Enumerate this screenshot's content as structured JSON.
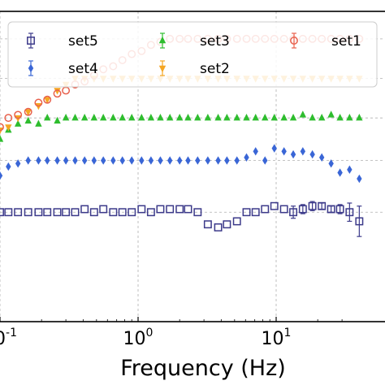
{
  "chart_data": {
    "type": "scatter",
    "title": "",
    "xlabel": "Frequency (Hz)",
    "ylabel": "",
    "x_scale": "log",
    "xlim": [
      0.1,
      100
    ],
    "x_tick_labels": [
      {
        "base": "10",
        "exp": "-1",
        "value": 0.1
      },
      {
        "base": "10",
        "exp": "0",
        "value": 1
      },
      {
        "base": "10",
        "exp": "1",
        "value": 10
      }
    ],
    "grid": true,
    "legend_position": "top",
    "colors": {
      "set1": "#e8604c",
      "set2": "#f5a623",
      "set3": "#2ebd2e",
      "set4": "#3a66d6",
      "set5": "#3c3a8a"
    },
    "series": [
      {
        "name": "set5",
        "marker": "square-open",
        "points": [
          [
            0.1,
            0.36
          ],
          [
            0.115,
            0.36
          ],
          [
            0.135,
            0.36
          ],
          [
            0.16,
            0.36
          ],
          [
            0.19,
            0.36
          ],
          [
            0.22,
            0.36
          ],
          [
            0.26,
            0.36
          ],
          [
            0.3,
            0.36
          ],
          [
            0.35,
            0.36
          ],
          [
            0.41,
            0.37
          ],
          [
            0.48,
            0.36
          ],
          [
            0.56,
            0.37
          ],
          [
            0.66,
            0.36
          ],
          [
            0.77,
            0.36
          ],
          [
            0.9,
            0.36
          ],
          [
            1.06,
            0.37
          ],
          [
            1.24,
            0.36
          ],
          [
            1.45,
            0.37
          ],
          [
            1.7,
            0.37
          ],
          [
            2.0,
            0.37
          ],
          [
            2.3,
            0.37
          ],
          [
            2.7,
            0.36
          ],
          [
            3.2,
            0.32
          ],
          [
            3.8,
            0.31
          ],
          [
            4.4,
            0.32
          ],
          [
            5.2,
            0.33
          ],
          [
            6.1,
            0.36
          ],
          [
            7.1,
            0.36
          ],
          [
            8.3,
            0.37
          ],
          [
            9.7,
            0.38
          ],
          [
            11.4,
            0.37
          ],
          [
            13.3,
            0.36
          ],
          [
            15.6,
            0.37
          ],
          [
            18.3,
            0.38
          ],
          [
            21.4,
            0.38
          ],
          [
            25,
            0.37
          ],
          [
            29,
            0.37
          ],
          [
            34,
            0.36
          ],
          [
            40,
            0.33
          ]
        ],
        "errors": [
          0,
          0,
          0,
          0,
          0,
          0,
          0,
          0,
          0,
          0,
          0,
          0,
          0,
          0,
          0,
          0,
          0,
          0,
          0,
          0,
          0,
          0,
          0,
          0,
          0,
          0,
          0,
          0,
          0,
          0,
          0,
          0.02,
          0.015,
          0.015,
          0.01,
          0.01,
          0.015,
          0.03,
          0.05
        ]
      },
      {
        "name": "set4",
        "marker": "diamond",
        "points": [
          [
            0.1,
            0.48
          ],
          [
            0.115,
            0.51
          ],
          [
            0.135,
            0.52
          ],
          [
            0.16,
            0.53
          ],
          [
            0.19,
            0.53
          ],
          [
            0.22,
            0.53
          ],
          [
            0.26,
            0.53
          ],
          [
            0.3,
            0.53
          ],
          [
            0.35,
            0.53
          ],
          [
            0.41,
            0.53
          ],
          [
            0.48,
            0.53
          ],
          [
            0.56,
            0.53
          ],
          [
            0.66,
            0.53
          ],
          [
            0.77,
            0.53
          ],
          [
            0.9,
            0.53
          ],
          [
            1.06,
            0.53
          ],
          [
            1.24,
            0.53
          ],
          [
            1.45,
            0.53
          ],
          [
            1.7,
            0.53
          ],
          [
            2.0,
            0.53
          ],
          [
            2.3,
            0.53
          ],
          [
            2.7,
            0.53
          ],
          [
            3.2,
            0.53
          ],
          [
            3.8,
            0.53
          ],
          [
            4.4,
            0.53
          ],
          [
            5.2,
            0.53
          ],
          [
            6.1,
            0.54
          ],
          [
            7.1,
            0.56
          ],
          [
            8.3,
            0.53
          ],
          [
            9.7,
            0.57
          ],
          [
            11.4,
            0.56
          ],
          [
            13.3,
            0.55
          ],
          [
            15.6,
            0.56
          ],
          [
            18.3,
            0.55
          ],
          [
            21.4,
            0.54
          ],
          [
            25,
            0.52
          ],
          [
            29,
            0.49
          ],
          [
            34,
            0.5
          ],
          [
            40,
            0.47
          ]
        ],
        "errors": [
          0,
          0,
          0,
          0,
          0,
          0,
          0,
          0,
          0,
          0,
          0,
          0,
          0,
          0,
          0,
          0,
          0,
          0,
          0,
          0,
          0,
          0,
          0,
          0,
          0,
          0,
          0,
          0,
          0,
          0,
          0,
          0,
          0,
          0,
          0,
          0,
          0,
          0,
          0
        ]
      },
      {
        "name": "set3",
        "marker": "triangle-up",
        "points": [
          [
            0.1,
            0.6
          ],
          [
            0.115,
            0.63
          ],
          [
            0.135,
            0.65
          ],
          [
            0.16,
            0.66
          ],
          [
            0.19,
            0.65
          ],
          [
            0.22,
            0.67
          ],
          [
            0.26,
            0.66
          ],
          [
            0.3,
            0.67
          ],
          [
            0.35,
            0.67
          ],
          [
            0.41,
            0.67
          ],
          [
            0.48,
            0.67
          ],
          [
            0.56,
            0.67
          ],
          [
            0.66,
            0.67
          ],
          [
            0.77,
            0.67
          ],
          [
            0.9,
            0.67
          ],
          [
            1.06,
            0.67
          ],
          [
            1.24,
            0.67
          ],
          [
            1.45,
            0.67
          ],
          [
            1.7,
            0.67
          ],
          [
            2.0,
            0.67
          ],
          [
            2.3,
            0.67
          ],
          [
            2.7,
            0.67
          ],
          [
            3.2,
            0.67
          ],
          [
            3.8,
            0.67
          ],
          [
            4.4,
            0.67
          ],
          [
            5.2,
            0.67
          ],
          [
            6.1,
            0.67
          ],
          [
            7.1,
            0.67
          ],
          [
            8.3,
            0.67
          ],
          [
            9.7,
            0.67
          ],
          [
            11.4,
            0.67
          ],
          [
            13.3,
            0.67
          ],
          [
            15.6,
            0.68
          ],
          [
            18.3,
            0.67
          ],
          [
            21.4,
            0.67
          ],
          [
            25,
            0.68
          ],
          [
            29,
            0.67
          ],
          [
            34,
            0.67
          ],
          [
            40,
            0.67
          ]
        ],
        "errors": [
          0,
          0,
          0,
          0,
          0,
          0,
          0,
          0,
          0,
          0,
          0,
          0,
          0,
          0,
          0,
          0,
          0,
          0,
          0,
          0,
          0,
          0,
          0,
          0,
          0,
          0,
          0,
          0,
          0,
          0,
          0,
          0,
          0,
          0,
          0,
          0,
          0,
          0,
          0
        ]
      },
      {
        "name": "set2",
        "marker": "triangle-down",
        "points": [
          [
            0.1,
            0.63
          ],
          [
            0.115,
            0.64
          ],
          [
            0.135,
            0.67
          ],
          [
            0.16,
            0.69
          ],
          [
            0.19,
            0.71
          ],
          [
            0.22,
            0.73
          ],
          [
            0.26,
            0.76
          ],
          [
            0.3,
            0.78
          ],
          [
            0.35,
            0.8
          ],
          [
            0.41,
            0.8
          ],
          [
            0.48,
            0.8
          ],
          [
            0.56,
            0.8
          ],
          [
            0.66,
            0.8
          ],
          [
            0.77,
            0.8
          ],
          [
            0.9,
            0.8
          ],
          [
            1.06,
            0.8
          ],
          [
            1.24,
            0.8
          ],
          [
            1.45,
            0.8
          ],
          [
            1.7,
            0.8
          ],
          [
            2.0,
            0.8
          ],
          [
            2.3,
            0.8
          ],
          [
            2.7,
            0.8
          ],
          [
            3.2,
            0.8
          ],
          [
            3.8,
            0.8
          ],
          [
            4.4,
            0.8
          ],
          [
            5.2,
            0.8
          ],
          [
            6.1,
            0.8
          ],
          [
            7.1,
            0.8
          ],
          [
            8.3,
            0.8
          ],
          [
            9.7,
            0.8
          ],
          [
            11.4,
            0.8
          ],
          [
            13.3,
            0.8
          ],
          [
            15.6,
            0.8
          ],
          [
            18.3,
            0.8
          ],
          [
            21.4,
            0.8
          ],
          [
            25,
            0.8
          ],
          [
            29,
            0.8
          ],
          [
            34,
            0.8
          ],
          [
            40,
            0.8
          ]
        ],
        "errors": [
          0,
          0,
          0,
          0,
          0,
          0,
          0,
          0,
          0,
          0,
          0,
          0,
          0,
          0,
          0,
          0,
          0,
          0,
          0,
          0,
          0,
          0,
          0,
          0,
          0,
          0,
          0,
          0,
          0,
          0,
          0,
          0,
          0,
          0,
          0,
          0,
          0,
          0,
          0
        ]
      },
      {
        "name": "set1",
        "marker": "circle-open",
        "points": [
          [
            0.1,
            0.64
          ],
          [
            0.115,
            0.67
          ],
          [
            0.135,
            0.68
          ],
          [
            0.16,
            0.69
          ],
          [
            0.19,
            0.72
          ],
          [
            0.22,
            0.73
          ],
          [
            0.26,
            0.75
          ],
          [
            0.3,
            0.76
          ],
          [
            0.35,
            0.78
          ],
          [
            0.41,
            0.79
          ],
          [
            0.48,
            0.81
          ],
          [
            0.56,
            0.83
          ],
          [
            0.66,
            0.84
          ],
          [
            0.77,
            0.86
          ],
          [
            0.9,
            0.88
          ],
          [
            1.06,
            0.89
          ],
          [
            1.24,
            0.91
          ],
          [
            1.45,
            0.92
          ],
          [
            1.7,
            0.93
          ],
          [
            2.0,
            0.93
          ],
          [
            2.3,
            0.93
          ],
          [
            2.7,
            0.93
          ],
          [
            3.2,
            0.93
          ],
          [
            3.8,
            0.93
          ],
          [
            4.4,
            0.93
          ],
          [
            5.2,
            0.93
          ],
          [
            6.1,
            0.93
          ],
          [
            7.1,
            0.93
          ],
          [
            8.3,
            0.93
          ],
          [
            9.7,
            0.93
          ],
          [
            11.4,
            0.93
          ],
          [
            13.3,
            0.93
          ],
          [
            15.6,
            0.93
          ],
          [
            18.3,
            0.93
          ],
          [
            21.4,
            0.93
          ],
          [
            25,
            0.93
          ],
          [
            29,
            0.93
          ],
          [
            34,
            0.93
          ],
          [
            40,
            0.93
          ]
        ],
        "errors": [
          0,
          0,
          0,
          0,
          0,
          0,
          0,
          0,
          0,
          0,
          0,
          0,
          0,
          0,
          0,
          0,
          0,
          0,
          0,
          0,
          0,
          0,
          0,
          0,
          0,
          0,
          0,
          0,
          0,
          0,
          0,
          0,
          0,
          0,
          0,
          0,
          0,
          0,
          0
        ]
      }
    ]
  }
}
